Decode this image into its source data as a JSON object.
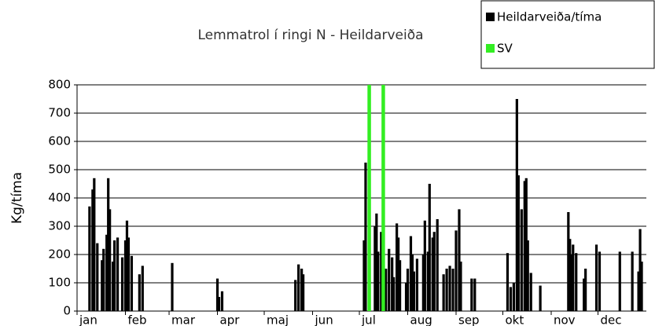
{
  "chart_data": {
    "type": "bar",
    "title": "Lemmatrol í ringi N - Heildarveiða",
    "ylabel": "Kg/tíma",
    "xlim": [
      0,
      365
    ],
    "xticks": [
      {
        "value": 0,
        "label": "jan"
      },
      {
        "value": 31,
        "label": "feb"
      },
      {
        "value": 59,
        "label": "mar"
      },
      {
        "value": 90,
        "label": "apr"
      },
      {
        "value": 120,
        "label": "maj"
      },
      {
        "value": 151,
        "label": "jun"
      },
      {
        "value": 181,
        "label": "jul"
      },
      {
        "value": 212,
        "label": "aug"
      },
      {
        "value": 243,
        "label": "sep"
      },
      {
        "value": 273,
        "label": "okt"
      },
      {
        "value": 304,
        "label": "nov"
      },
      {
        "value": 334,
        "label": "dec"
      }
    ],
    "ylim": [
      0,
      800
    ],
    "yticks": [
      0,
      100,
      200,
      300,
      400,
      500,
      600,
      700,
      800
    ],
    "grid": true,
    "legend": "top-right",
    "series": [
      {
        "name": "Heildarveiða/tíma",
        "color": "#000000",
        "x": [
          8,
          10,
          11,
          13,
          16,
          17,
          19,
          20,
          21,
          23,
          24,
          26,
          29,
          31,
          32,
          33,
          35,
          40,
          42,
          61,
          90,
          91,
          93,
          140,
          142,
          144,
          145,
          184,
          185,
          191,
          192,
          193,
          195,
          198,
          200,
          202,
          203,
          205,
          206,
          207,
          211,
          212,
          214,
          215,
          216,
          218,
          222,
          223,
          225,
          226,
          228,
          229,
          231,
          235,
          237,
          239,
          241,
          243,
          245,
          246,
          253,
          255,
          276,
          278,
          280,
          282,
          283,
          285,
          287,
          288,
          289,
          291,
          297,
          315,
          316,
          317,
          318,
          320,
          325,
          326,
          333,
          335,
          348,
          356,
          360,
          361,
          362
        ],
        "values": [
          370,
          430,
          470,
          240,
          180,
          220,
          270,
          470,
          360,
          175,
          250,
          260,
          190,
          250,
          320,
          260,
          195,
          130,
          160,
          170,
          115,
          50,
          70,
          110,
          165,
          150,
          130,
          250,
          525,
          300,
          345,
          210,
          280,
          150,
          220,
          190,
          120,
          310,
          260,
          180,
          100,
          150,
          265,
          200,
          140,
          185,
          200,
          320,
          210,
          450,
          260,
          280,
          325,
          130,
          150,
          160,
          150,
          285,
          360,
          175,
          115,
          115,
          205,
          85,
          100,
          750,
          480,
          360,
          460,
          470,
          250,
          135,
          90,
          350,
          255,
          200,
          235,
          205,
          115,
          150,
          235,
          210,
          210,
          210,
          140,
          290,
          175
        ]
      },
      {
        "name": "SV",
        "color": "#33ee22",
        "x": [
          187,
          196
        ],
        "values": [
          800,
          800
        ]
      }
    ]
  }
}
